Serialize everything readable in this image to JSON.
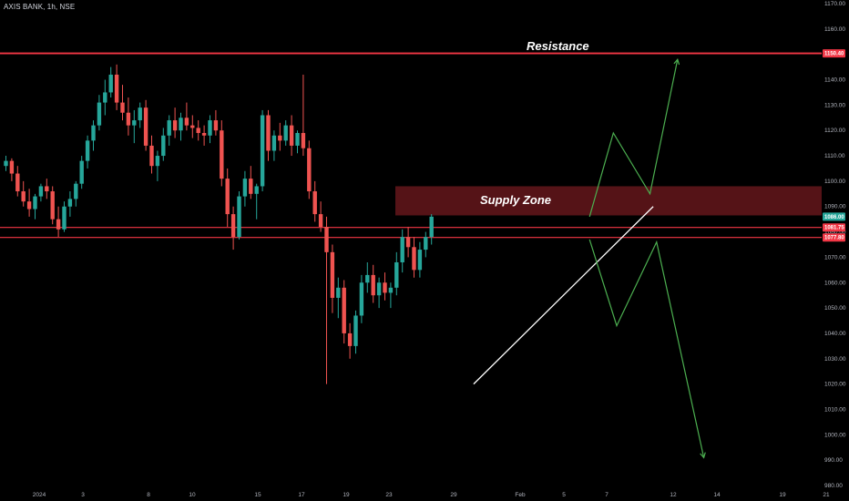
{
  "header": {
    "symbol": "AXIS BANK, 1h, NSE"
  },
  "chart_data": {
    "type": "candlestick",
    "colors": {
      "up": "#26a69a",
      "down": "#ef5350",
      "background": "#000000",
      "level_line": "#f23645",
      "zone_fill": "#5a1418",
      "trendline": "#ffffff",
      "projection": "#4caf50"
    },
    "y_axis": {
      "ylim": [
        980,
        1170
      ],
      "ticks": [
        "1170.00",
        "1160.00",
        "1150.00",
        "1140.00",
        "1130.00",
        "1120.00",
        "1110.00",
        "1100.00",
        "1090.00",
        "1080.00",
        "1070.00",
        "1060.00",
        "1050.00",
        "1040.00",
        "1030.00",
        "1020.00",
        "1010.00",
        "1000.00",
        "990.00",
        "980.00"
      ]
    },
    "x_axis": {
      "ticks": [
        "2024",
        "3",
        "8",
        "10",
        "15",
        "17",
        "19",
        "23",
        "29",
        "Feb",
        "5",
        "7",
        "12",
        "14",
        "19",
        "21"
      ]
    },
    "levels": [
      {
        "name": "Resistance",
        "value": 1150.4,
        "tag": "1150.40"
      },
      {
        "value": 1081.75,
        "tag": "1081.75"
      },
      {
        "value": 1077.8,
        "tag": "1077.80"
      }
    ],
    "price_tags": [
      {
        "value": 1150.4,
        "text": "1150.40"
      },
      {
        "value": 1086.0,
        "text": "1086.00"
      }
    ],
    "supply_zone": {
      "label": "Supply Zone",
      "from": 1086.5,
      "to": 1098.0
    },
    "annotations": [
      "Resistance",
      "Supply Zone"
    ],
    "trendline": {
      "from": [
        8.3,
        1020
      ],
      "to": [
        11.7,
        1090
      ]
    },
    "projection_up": [
      [
        10.6,
        1086
      ],
      [
        11.1,
        1119
      ],
      [
        11.65,
        1095
      ],
      [
        12.1,
        1148
      ]
    ],
    "projection_down": [
      [
        10.6,
        1077
      ],
      [
        11.15,
        1043
      ],
      [
        11.75,
        1076
      ],
      [
        12.7,
        991
      ]
    ],
    "series": [
      [
        1106,
        1110,
        1104,
        1108
      ],
      [
        1108,
        1109,
        1100,
        1103
      ],
      [
        1103,
        1106,
        1094,
        1096
      ],
      [
        1096,
        1100,
        1090,
        1092
      ],
      [
        1092,
        1097,
        1086,
        1089
      ],
      [
        1089,
        1095,
        1085,
        1094
      ],
      [
        1094,
        1099,
        1092,
        1098
      ],
      [
        1098,
        1101,
        1093,
        1096
      ],
      [
        1096,
        1098,
        1083,
        1085
      ],
      [
        1085,
        1090,
        1078,
        1081
      ],
      [
        1081,
        1092,
        1080,
        1090
      ],
      [
        1090,
        1096,
        1086,
        1093
      ],
      [
        1093,
        1100,
        1090,
        1099
      ],
      [
        1099,
        1110,
        1097,
        1108
      ],
      [
        1108,
        1118,
        1105,
        1116
      ],
      [
        1116,
        1124,
        1112,
        1122
      ],
      [
        1122,
        1134,
        1120,
        1131
      ],
      [
        1131,
        1140,
        1126,
        1135
      ],
      [
        1135,
        1145,
        1133,
        1142
      ],
      [
        1142,
        1146,
        1128,
        1131
      ],
      [
        1131,
        1138,
        1124,
        1127
      ],
      [
        1127,
        1133,
        1118,
        1122
      ],
      [
        1122,
        1128,
        1115,
        1124
      ],
      [
        1124,
        1131,
        1121,
        1129
      ],
      [
        1129,
        1132,
        1112,
        1114
      ],
      [
        1114,
        1118,
        1103,
        1106
      ],
      [
        1106,
        1112,
        1100,
        1110
      ],
      [
        1110,
        1121,
        1108,
        1118
      ],
      [
        1118,
        1126,
        1114,
        1124
      ],
      [
        1124,
        1129,
        1117,
        1120
      ],
      [
        1120,
        1127,
        1116,
        1125
      ],
      [
        1125,
        1131,
        1120,
        1122
      ],
      [
        1122,
        1126,
        1117,
        1121
      ],
      [
        1121,
        1124,
        1116,
        1119
      ],
      [
        1119,
        1122,
        1114,
        1118
      ],
      [
        1118,
        1126,
        1115,
        1124
      ],
      [
        1124,
        1128,
        1118,
        1120
      ],
      [
        1120,
        1124,
        1098,
        1101
      ],
      [
        1101,
        1105,
        1082,
        1087
      ],
      [
        1087,
        1090,
        1073,
        1078
      ],
      [
        1078,
        1096,
        1077,
        1094
      ],
      [
        1094,
        1104,
        1090,
        1101
      ],
      [
        1101,
        1106,
        1093,
        1095
      ],
      [
        1095,
        1099,
        1085,
        1098
      ],
      [
        1098,
        1128,
        1096,
        1126
      ],
      [
        1126,
        1128,
        1108,
        1112
      ],
      [
        1112,
        1120,
        1108,
        1118
      ],
      [
        1118,
        1123,
        1112,
        1116
      ],
      [
        1116,
        1124,
        1114,
        1122
      ],
      [
        1122,
        1126,
        1110,
        1114
      ],
      [
        1114,
        1120,
        1111,
        1119
      ],
      [
        1119,
        1142,
        1110,
        1113
      ],
      [
        1113,
        1116,
        1093,
        1096
      ],
      [
        1096,
        1100,
        1084,
        1087
      ],
      [
        1087,
        1092,
        1080,
        1082
      ],
      [
        1082,
        1086,
        1020,
        1072
      ],
      [
        1072,
        1075,
        1048,
        1054
      ],
      [
        1054,
        1062,
        1046,
        1058
      ],
      [
        1058,
        1061,
        1036,
        1040
      ],
      [
        1040,
        1044,
        1030,
        1035
      ],
      [
        1035,
        1049,
        1032,
        1047
      ],
      [
        1047,
        1063,
        1044,
        1060
      ],
      [
        1060,
        1068,
        1056,
        1063
      ],
      [
        1063,
        1067,
        1052,
        1055
      ],
      [
        1055,
        1062,
        1050,
        1060
      ],
      [
        1060,
        1064,
        1053,
        1056
      ],
      [
        1056,
        1060,
        1050,
        1058
      ],
      [
        1058,
        1072,
        1055,
        1068
      ],
      [
        1068,
        1081,
        1064,
        1078
      ],
      [
        1078,
        1082,
        1070,
        1074
      ],
      [
        1074,
        1078,
        1062,
        1065
      ],
      [
        1065,
        1076,
        1062,
        1073
      ],
      [
        1073,
        1080,
        1070,
        1078
      ],
      [
        1078,
        1087,
        1075,
        1086
      ]
    ]
  }
}
